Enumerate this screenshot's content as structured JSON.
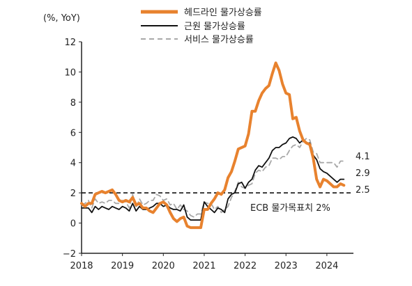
{
  "chart_data": {
    "type": "line",
    "unit_label": "(%, YoY)",
    "x_ticks": [
      "2018",
      "2019",
      "2020",
      "2021",
      "2022",
      "2023",
      "2024"
    ],
    "y_ticks": [
      "12",
      "10",
      "8",
      "6",
      "4",
      "2",
      "0",
      "−2"
    ],
    "ylim": [
      -2,
      12
    ],
    "x_start": 2018.0,
    "x_step": 0.08333,
    "grid": false,
    "legend_position": "top-center",
    "reference_line": {
      "y": 2,
      "label": "ECB 물가목표치 2%",
      "style": "dashed"
    },
    "series": [
      {
        "name": "헤드라인 물가상승률",
        "color": "#E8822E",
        "style": "solid-thick",
        "end_label": "2.5",
        "values": [
          1.3,
          1.1,
          1.3,
          1.3,
          1.9,
          2.0,
          2.1,
          2.0,
          2.1,
          2.2,
          1.9,
          1.5,
          1.4,
          1.5,
          1.4,
          1.7,
          1.2,
          1.3,
          1.0,
          1.0,
          0.8,
          0.7,
          1.0,
          1.3,
          1.4,
          1.2,
          0.7,
          0.3,
          0.1,
          0.3,
          0.4,
          -0.2,
          -0.3,
          -0.3,
          -0.3,
          -0.3,
          0.9,
          0.9,
          1.3,
          1.6,
          2.0,
          1.9,
          2.2,
          3.0,
          3.4,
          4.1,
          4.9,
          5.0,
          5.1,
          5.9,
          7.4,
          7.4,
          8.1,
          8.6,
          8.9,
          9.1,
          9.9,
          10.6,
          10.1,
          9.2,
          8.6,
          8.5,
          6.9,
          7.0,
          6.1,
          5.5,
          5.3,
          5.2,
          4.3,
          2.9,
          2.4,
          2.9,
          2.8,
          2.6,
          2.4,
          2.4,
          2.6,
          2.5
        ]
      },
      {
        "name": "근원 물가상승률",
        "color": "#111111",
        "style": "solid",
        "end_label": "2.9",
        "values": [
          1.0,
          1.0,
          1.0,
          0.7,
          1.1,
          0.9,
          1.1,
          1.0,
          0.9,
          1.1,
          1.0,
          0.9,
          1.1,
          1.0,
          0.8,
          1.3,
          0.8,
          1.1,
          0.9,
          0.9,
          1.0,
          1.1,
          1.3,
          1.3,
          1.1,
          1.2,
          1.0,
          0.9,
          0.9,
          0.8,
          1.2,
          0.4,
          0.2,
          0.2,
          0.2,
          0.2,
          1.4,
          1.1,
          0.9,
          0.7,
          1.0,
          0.9,
          0.7,
          1.6,
          1.9,
          2.0,
          2.6,
          2.7,
          2.3,
          2.7,
          2.9,
          3.5,
          3.8,
          3.7,
          4.0,
          4.3,
          4.8,
          5.0,
          5.0,
          5.2,
          5.3,
          5.6,
          5.7,
          5.6,
          5.3,
          5.5,
          5.3,
          5.3,
          4.5,
          4.2,
          3.6,
          3.4,
          3.3,
          3.1,
          2.9,
          2.7,
          2.9,
          2.9
        ]
      },
      {
        "name": "서비스 물가상승률",
        "color": "#A8A8A8",
        "style": "dashed",
        "end_label": "4.1",
        "values": [
          1.2,
          1.3,
          1.5,
          1.0,
          1.6,
          1.3,
          1.4,
          1.3,
          1.5,
          1.5,
          1.3,
          1.3,
          1.5,
          1.4,
          1.0,
          1.9,
          1.0,
          1.6,
          1.2,
          1.3,
          1.5,
          1.5,
          1.9,
          1.8,
          1.5,
          1.6,
          1.2,
          1.3,
          0.9,
          1.2,
          0.9,
          0.8,
          0.5,
          0.4,
          0.6,
          0.6,
          1.4,
          1.3,
          1.3,
          0.9,
          1.1,
          0.7,
          0.9,
          1.1,
          1.7,
          2.1,
          2.7,
          2.4,
          2.3,
          2.5,
          2.6,
          3.3,
          3.5,
          3.4,
          3.7,
          3.8,
          4.3,
          4.3,
          4.2,
          4.4,
          4.4,
          4.8,
          5.1,
          5.2,
          5.0,
          5.4,
          5.6,
          5.5,
          4.7,
          4.6,
          4.0,
          4.0,
          4.0,
          4.0,
          4.0,
          3.7,
          4.1,
          4.1
        ]
      }
    ]
  }
}
